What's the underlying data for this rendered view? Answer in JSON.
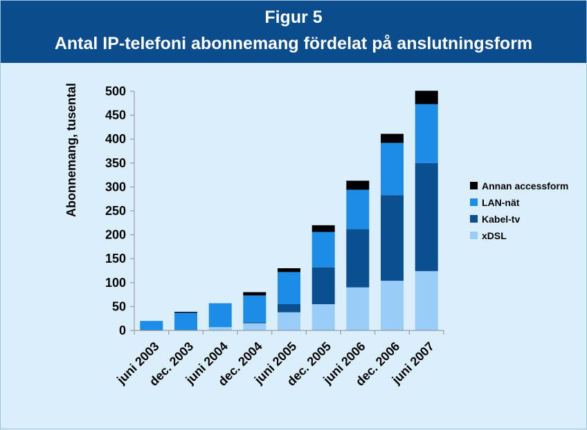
{
  "header": {
    "title": "Figur 5",
    "subtitle": "Antal IP-telefoni abonnemang fördelat på anslutningsform"
  },
  "chart_data": {
    "type": "bar",
    "stacked": true,
    "title": "Figur 5",
    "subtitle": "Antal IP-telefoni abonnemang fördelat på anslutningsform",
    "xlabel": "",
    "ylabel": "Abonnemang, tusental",
    "ylim": [
      0,
      500
    ],
    "yticks": [
      0,
      50,
      100,
      150,
      200,
      250,
      300,
      350,
      400,
      450,
      500
    ],
    "grid": false,
    "legend_position": "right",
    "categories": [
      "juni 2003",
      "dec. 2003",
      "juni 2004",
      "dec. 2004",
      "juni 2005",
      "dec. 2005",
      "juni 2006",
      "dec. 2006",
      "juni 2007"
    ],
    "series": [
      {
        "name": "xDSL",
        "color": "#99ccf7",
        "values": [
          0,
          0,
          7,
          15,
          38,
          55,
          90,
          104,
          124
        ]
      },
      {
        "name": "Kabel-tv",
        "color": "#0a4f8f",
        "values": [
          0,
          1,
          0,
          2,
          17,
          77,
          122,
          179,
          226
        ]
      },
      {
        "name": "LAN-nät",
        "color": "#1c8ce6",
        "values": [
          20,
          36,
          50,
          56,
          67,
          74,
          82,
          109,
          123
        ]
      },
      {
        "name": "Annan accessform",
        "color": "#000000",
        "values": [
          0,
          2,
          0,
          7,
          8,
          14,
          19,
          19,
          28
        ]
      }
    ],
    "legend_order": [
      "Annan accessform",
      "LAN-nät",
      "Kabel-tv",
      "xDSL"
    ]
  }
}
